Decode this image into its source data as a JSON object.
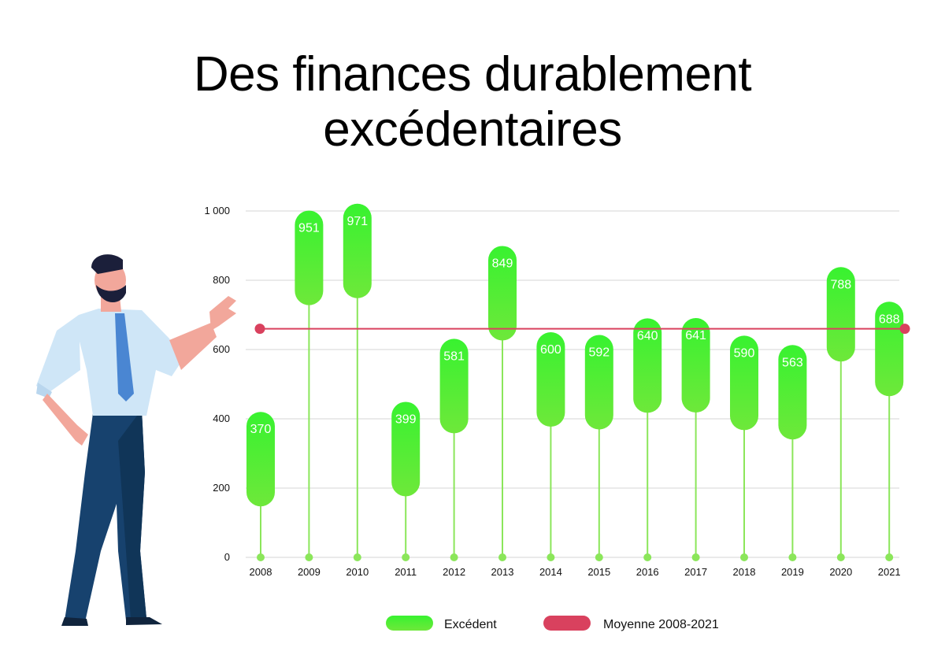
{
  "title": {
    "line1": "Des finances durablement",
    "line2": "excédentaires"
  },
  "colors": {
    "bar_top": "#38f230",
    "bar_bottom": "#6ee83a",
    "stem": "#8be65a",
    "average": "#d9415e",
    "grid": "#d6d6d6"
  },
  "chart_data": {
    "type": "bar",
    "categories": [
      "2008",
      "2009",
      "2010",
      "2011",
      "2012",
      "2013",
      "2014",
      "2015",
      "2016",
      "2017",
      "2018",
      "2019",
      "2020",
      "2021"
    ],
    "series": [
      {
        "name": "Excédent",
        "values": [
          370,
          951,
          971,
          399,
          581,
          849,
          600,
          592,
          640,
          641,
          590,
          563,
          788,
          688
        ]
      }
    ],
    "value_labels": [
      "370",
      "951",
      "971",
      "399",
      "581",
      "849",
      "600",
      "592",
      "640",
      "641",
      "590",
      "563",
      "788",
      "688"
    ],
    "average": {
      "name": "Moyenne 2008-2021",
      "value": 660
    },
    "yticks": [
      0,
      200,
      400,
      600,
      800,
      1000
    ],
    "ytick_labels": [
      "0",
      "200",
      "400",
      "600",
      "800",
      "1 000"
    ],
    "ylim": [
      0,
      1000
    ],
    "grid": true,
    "legend_position": "bottom"
  },
  "legend": {
    "excedent": "Excédent",
    "moyenne": "Moyenne 2008-2021"
  },
  "illustration": {
    "subject": "businessman-presenting"
  }
}
